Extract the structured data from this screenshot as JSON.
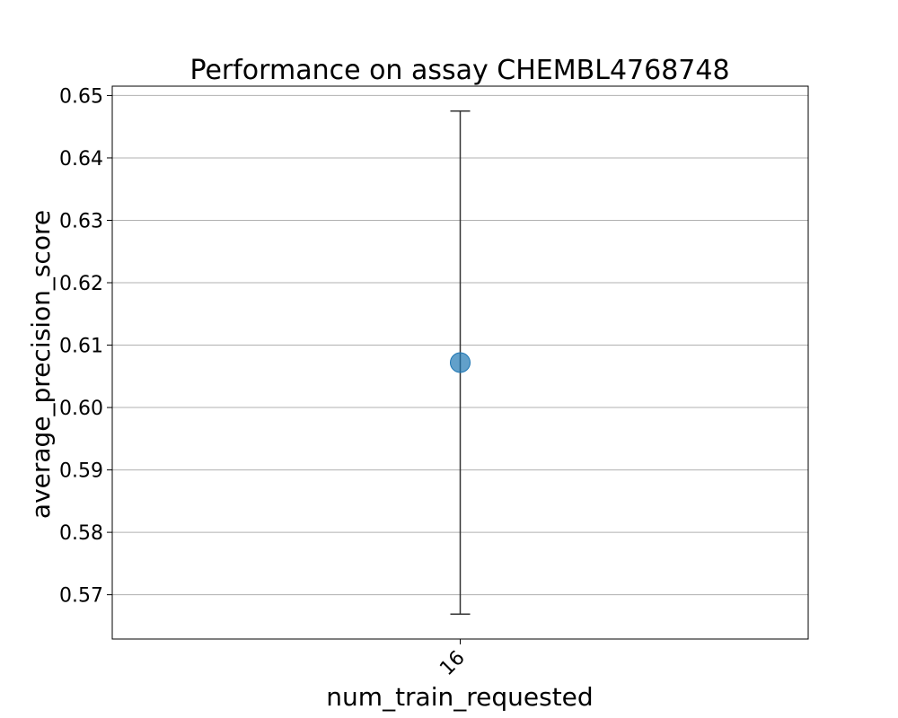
{
  "chart_data": {
    "type": "scatter",
    "title": "Performance on assay CHEMBL4768748",
    "xlabel": "num_train_requested",
    "ylabel": "average_precision_score",
    "categories": [
      "16"
    ],
    "series": [
      {
        "name": "average_precision_score",
        "points": [
          {
            "x": "16",
            "y": 0.6072,
            "err_low": 0.5669,
            "err_high": 0.6475
          }
        ]
      }
    ],
    "yticks": [
      "0.57",
      "0.58",
      "0.59",
      "0.60",
      "0.61",
      "0.62",
      "0.63",
      "0.64",
      "0.65"
    ],
    "ylim": [
      0.5629,
      0.6515
    ],
    "grid": "horizontal",
    "colors": {
      "marker": "#1f77b4",
      "errorbar": "#333333",
      "grid": "#b0b0b0",
      "axes": "#000000"
    }
  }
}
